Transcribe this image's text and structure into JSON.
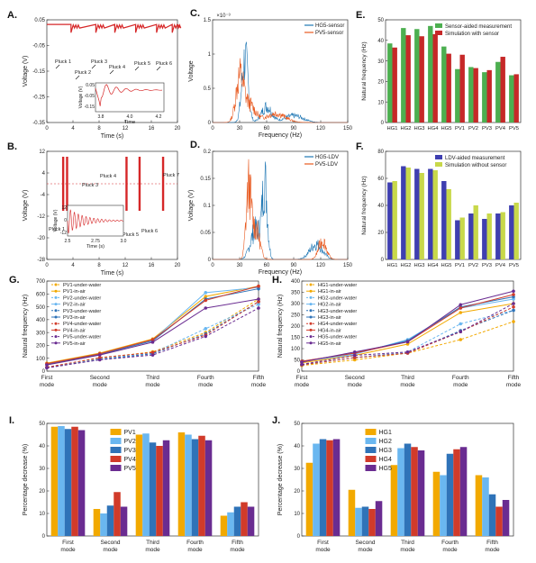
{
  "colors": {
    "red": "#d62728",
    "blue": "#1f77b4",
    "orange": "#e8591f",
    "green": "#4caf50",
    "crimson": "#c62828",
    "navy": "#3f3fb0",
    "lime": "#c8d84a",
    "pv1": "#f2a900",
    "pv2": "#6ab7f0",
    "pv3": "#2f73b8",
    "pv4": "#d13b2a",
    "pv5": "#6a2c91"
  },
  "panels": [
    {
      "label": "A.",
      "xlabel": "Time (s)",
      "ylabel": "Voltage (V)",
      "xticks": [
        "0",
        "4",
        "8",
        "12",
        "16",
        "20"
      ],
      "yticks": [
        "0.05",
        "-0.05",
        "-0.15",
        "-0.25",
        "-0.35"
      ],
      "annot": [
        "Pluck 1",
        "Pluck 2",
        "Pluck 3",
        "Pluck 4",
        "Pluck 5",
        "Pluck 6"
      ],
      "inset": {
        "xlabel": "Time",
        "ylabel": "Voltage (V)",
        "xticks": [
          "3.8",
          "4.0",
          "4.2"
        ],
        "yticks": [
          "0.05",
          "-0.05",
          "-0.15"
        ]
      }
    },
    {
      "label": "B.",
      "xlabel": "Time (s)",
      "ylabel": "Voltage (V)",
      "xticks": [
        "0",
        "4",
        "8",
        "12",
        "16",
        "20"
      ],
      "yticks": [
        "12",
        "4",
        "-4",
        "-12",
        "-20",
        "-28"
      ],
      "annot": [
        "Pluck 1",
        "Pluck 2",
        "Pluck 3",
        "Pluck 4",
        "Pluck 5",
        "Pluck 6",
        "Pluck 7"
      ],
      "inset": {
        "xlabel": "Time (s)",
        "ylabel": "Voltage (V)",
        "xticks": [
          "2.5",
          "2.75",
          "3.0"
        ],
        "yticks": [
          "12",
          "0",
          "-12"
        ]
      }
    },
    {
      "label": "C.",
      "xlabel": "Frequency (Hz)",
      "ylabel": "Voltage",
      "xticks": [
        "0",
        "30",
        "60",
        "90",
        "120",
        "150"
      ],
      "yticks": [
        "0",
        "0.5",
        "1",
        "1.5"
      ],
      "scale": "×10⁻³",
      "legend": [
        "HG5-sensor",
        "PV5-sensor"
      ]
    },
    {
      "label": "D.",
      "xlabel": "Frequency (Hz)",
      "ylabel": "Voltage (V)",
      "xticks": [
        "0",
        "30",
        "60",
        "90",
        "120",
        "150"
      ],
      "yticks": [
        "0",
        "0.05",
        "0.1",
        "0.15",
        "0.2"
      ],
      "legend": [
        "HG5-LDV",
        "PV5-LDV"
      ]
    }
  ],
  "chart_data": [
    {
      "type": "bar",
      "panel": "E.",
      "ylabel": "Natural frequency (Hz)",
      "ylim": [
        0,
        50
      ],
      "yticks": [
        "0",
        "10",
        "20",
        "30",
        "40",
        "50"
      ],
      "categories": [
        "HG1",
        "HG2",
        "HG3",
        "HG4",
        "HG5",
        "PV1",
        "PV2",
        "PV3",
        "PV4",
        "PV5"
      ],
      "series": [
        {
          "name": "Sensor-aided measurement",
          "values": [
            38.5,
            46,
            45.5,
            47,
            37,
            26,
            27,
            24.5,
            29.5,
            23
          ]
        },
        {
          "name": "Simulation with sensor",
          "values": [
            36.5,
            42.5,
            42,
            43,
            33.5,
            33,
            26.5,
            25.5,
            32,
            23.5
          ]
        }
      ],
      "legend": "top-right"
    },
    {
      "type": "bar",
      "panel": "F.",
      "ylabel": "Natural frequency (Hz)",
      "ylim": [
        0,
        80
      ],
      "yticks": [
        "0",
        "20",
        "40",
        "60",
        "80"
      ],
      "categories": [
        "HG1",
        "HG2",
        "HG3",
        "HG4",
        "HG5",
        "PV1",
        "PV2",
        "PV3",
        "PV4",
        "PV5"
      ],
      "series": [
        {
          "name": "LDV-aided measurement",
          "values": [
            57,
            69,
            67,
            67,
            58,
            29,
            34,
            30,
            34,
            40
          ]
        },
        {
          "name": "Simulation without sensor",
          "values": [
            58,
            68,
            64,
            66,
            52,
            31,
            40,
            34,
            35,
            42
          ]
        }
      ],
      "legend": "top-right"
    },
    {
      "type": "line",
      "panel": "G.",
      "ylabel": "Natural frequency (Hz)",
      "ylim": [
        0,
        700
      ],
      "yticks": [
        "0",
        "100",
        "200",
        "300",
        "400",
        "500",
        "600",
        "700"
      ],
      "categories": [
        "First mode",
        "Second mode",
        "Third mode",
        "Fourth mode",
        "Fifth mode"
      ],
      "series": [
        {
          "name": "PV1-under-water",
          "dashed": true,
          "color": "#f2a900",
          "values": [
            30,
            100,
            150,
            300,
            560
          ]
        },
        {
          "name": "PV1-in-air",
          "dashed": false,
          "color": "#f2a900",
          "values": [
            62,
            140,
            250,
            580,
            660
          ]
        },
        {
          "name": "PV2-under-water",
          "dashed": true,
          "color": "#6ab7f0",
          "values": [
            28,
            95,
            140,
            330,
            520
          ]
        },
        {
          "name": "PV2-in-air",
          "dashed": false,
          "color": "#6ab7f0",
          "values": [
            56,
            135,
            240,
            610,
            650
          ]
        },
        {
          "name": "PV3-under-water",
          "dashed": true,
          "color": "#2f73b8",
          "values": [
            27,
            90,
            135,
            290,
            540
          ]
        },
        {
          "name": "PV3-in-air",
          "dashed": false,
          "color": "#2f73b8",
          "values": [
            52,
            130,
            235,
            560,
            640
          ]
        },
        {
          "name": "PV4-under-water",
          "dashed": true,
          "color": "#d13b2a",
          "values": [
            30,
            105,
            145,
            280,
            540
          ]
        },
        {
          "name": "PV4-in-air",
          "dashed": false,
          "color": "#d13b2a",
          "values": [
            58,
            135,
            245,
            550,
            660
          ]
        },
        {
          "name": "PV5-under-water",
          "dashed": true,
          "color": "#6a2c91",
          "values": [
            25,
            88,
            125,
            270,
            490
          ]
        },
        {
          "name": "PV5-in-air",
          "dashed": false,
          "color": "#6a2c91",
          "values": [
            48,
            125,
            225,
            490,
            560
          ]
        }
      ],
      "legend": "top-left"
    },
    {
      "type": "line",
      "panel": "H.",
      "ylabel": "Natural frequency (Hz)",
      "ylim": [
        0,
        400
      ],
      "yticks": [
        "0",
        "50",
        "100",
        "150",
        "200",
        "250",
        "300",
        "350",
        "400"
      ],
      "categories": [
        "First mode",
        "Second mode",
        "Third mode",
        "Fourth mode",
        "Fifth mode"
      ],
      "series": [
        {
          "name": "HG1-under-water",
          "dashed": true,
          "color": "#f2a900",
          "values": [
            25,
            50,
            80,
            140,
            220
          ]
        },
        {
          "name": "HG1-in-air",
          "dashed": false,
          "color": "#f2a900",
          "values": [
            37,
            70,
            120,
            260,
            300
          ]
        },
        {
          "name": "HG2-under-water",
          "dashed": true,
          "color": "#6ab7f0",
          "values": [
            28,
            60,
            85,
            210,
            270
          ]
        },
        {
          "name": "HG2-in-air",
          "dashed": false,
          "color": "#6ab7f0",
          "values": [
            43,
            75,
            140,
            280,
            320
          ]
        },
        {
          "name": "HG3-under-water",
          "dashed": true,
          "color": "#2f73b8",
          "values": [
            28,
            60,
            80,
            180,
            270
          ]
        },
        {
          "name": "HG3-in-air",
          "dashed": false,
          "color": "#2f73b8",
          "values": [
            43,
            80,
            135,
            285,
            330
          ]
        },
        {
          "name": "HG4-under-water",
          "dashed": true,
          "color": "#d13b2a",
          "values": [
            28,
            60,
            80,
            175,
            285
          ]
        },
        {
          "name": "HG4-in-air",
          "dashed": false,
          "color": "#d13b2a",
          "values": [
            44,
            80,
            130,
            280,
            340
          ]
        },
        {
          "name": "HG5-under-water",
          "dashed": true,
          "color": "#6a2c91",
          "values": [
            30,
            70,
            85,
            175,
            300
          ]
        },
        {
          "name": "HG5-in-air",
          "dashed": false,
          "color": "#6a2c91",
          "values": [
            40,
            85,
            130,
            295,
            355
          ]
        }
      ],
      "legend": "top-left"
    },
    {
      "type": "bar",
      "panel": "I.",
      "ylabel": "Percentage decrease (%)",
      "ylim": [
        0,
        50
      ],
      "yticks": [
        "0",
        "10",
        "20",
        "30",
        "40",
        "50"
      ],
      "categories": [
        "First mode",
        "Second mode",
        "Third mode",
        "Fourth mode",
        "Fifth mode"
      ],
      "series": [
        {
          "name": "PV1",
          "values": [
            48.5,
            12,
            45,
            46,
            9
          ]
        },
        {
          "name": "PV2",
          "values": [
            48.8,
            10,
            45.5,
            45,
            10.5
          ]
        },
        {
          "name": "PV3",
          "values": [
            47.5,
            13.5,
            41.5,
            43,
            13
          ]
        },
        {
          "name": "PV4",
          "values": [
            48.5,
            19.5,
            40,
            44.5,
            15
          ]
        },
        {
          "name": "PV5",
          "values": [
            47,
            13,
            42.5,
            42.5,
            13
          ]
        }
      ],
      "legend": "top-center"
    },
    {
      "type": "bar",
      "panel": "J.",
      "ylabel": "Percentage decrease (%)",
      "ylim": [
        0,
        50
      ],
      "yticks": [
        "0",
        "10",
        "20",
        "30",
        "40",
        "50"
      ],
      "categories": [
        "First mode",
        "Second mode",
        "Third mode",
        "Fourth mode",
        "Fifth mode"
      ],
      "series": [
        {
          "name": "HG1",
          "values": [
            32.5,
            20.5,
            31.5,
            28.5,
            27
          ]
        },
        {
          "name": "HG2",
          "values": [
            41,
            12.5,
            39,
            27,
            26
          ]
        },
        {
          "name": "HG3",
          "values": [
            43,
            13,
            41,
            36.5,
            18.5
          ]
        },
        {
          "name": "HG4",
          "values": [
            42.5,
            12,
            39.5,
            38.5,
            13
          ]
        },
        {
          "name": "HG5",
          "values": [
            43,
            15.5,
            38,
            39.5,
            16
          ]
        }
      ],
      "legend": "top-center"
    }
  ]
}
